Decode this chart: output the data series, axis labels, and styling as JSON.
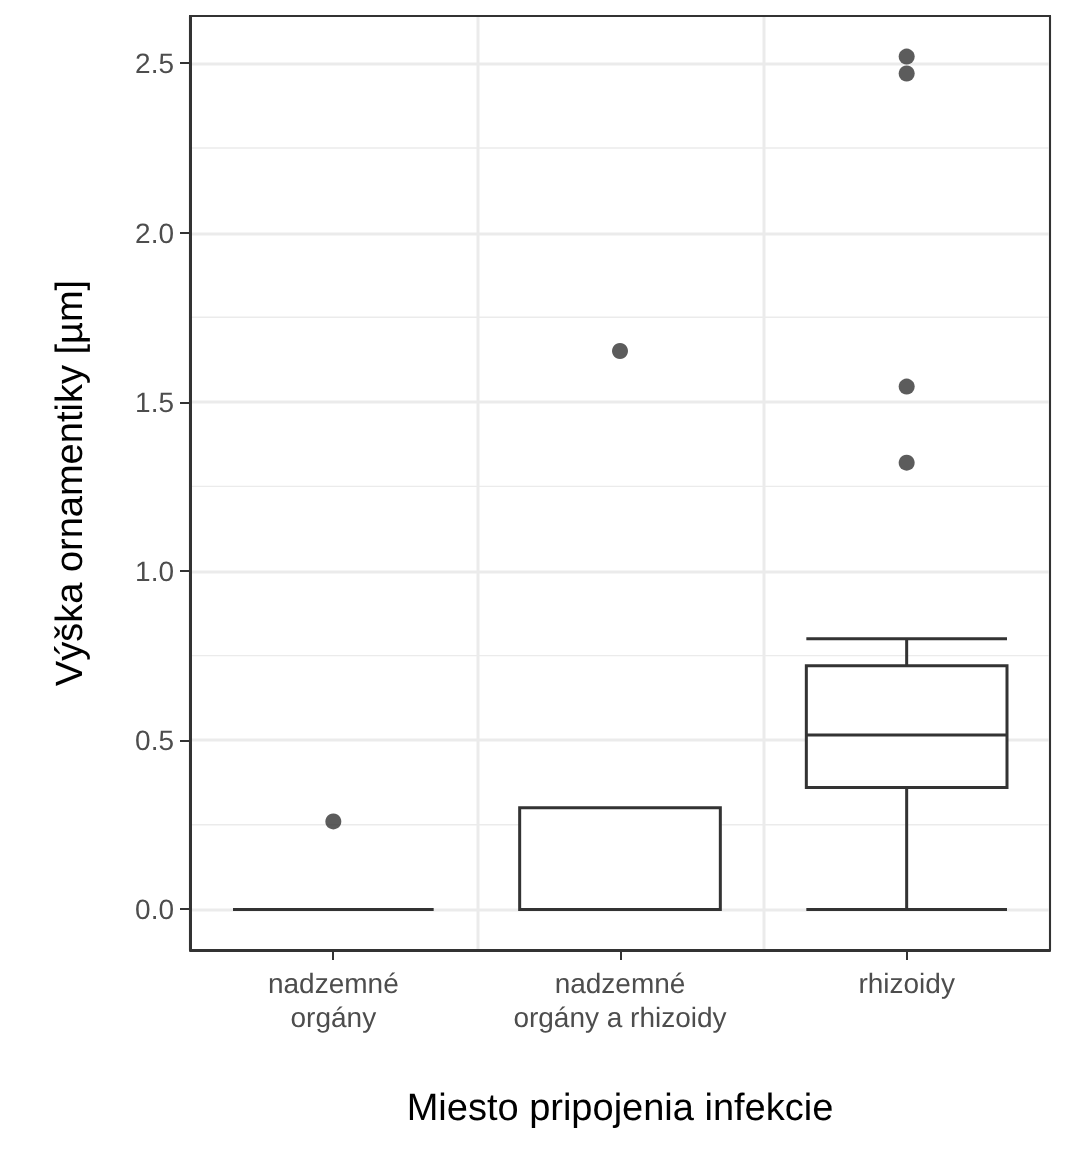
{
  "chart_data": {
    "type": "box",
    "xlabel": "Miesto pripojenia infekcie",
    "ylabel": "Výška ornamentiky [µm]",
    "categories": [
      "nadzemné\norgány",
      "nadzemné\norgány a rhizoidy",
      "rhizoidy"
    ],
    "color": "#333333",
    "boxes": [
      {
        "low": 0,
        "q1": 0,
        "median": 0,
        "q3": 0,
        "high": 0,
        "outliers": [
          0.26
        ]
      },
      {
        "low": 0,
        "q1": 0,
        "median": 0,
        "q3": 0.3,
        "high": 0.3,
        "outliers": [
          1.65
        ]
      },
      {
        "low": 0,
        "q1": 0.36,
        "median": 0.515,
        "q3": 0.72,
        "high": 0.8,
        "outliers": [
          1.32,
          1.545,
          2.47,
          2.52
        ]
      }
    ],
    "ylim": [
      -0.12,
      2.64
    ],
    "yticks": [
      {
        "value": 0,
        "label": "0.0"
      },
      0.5,
      {
        "value": 1,
        "label": "1.0"
      },
      1.5,
      {
        "value": 2,
        "label": "2.0"
      },
      2.5
    ],
    "grid": true
  }
}
